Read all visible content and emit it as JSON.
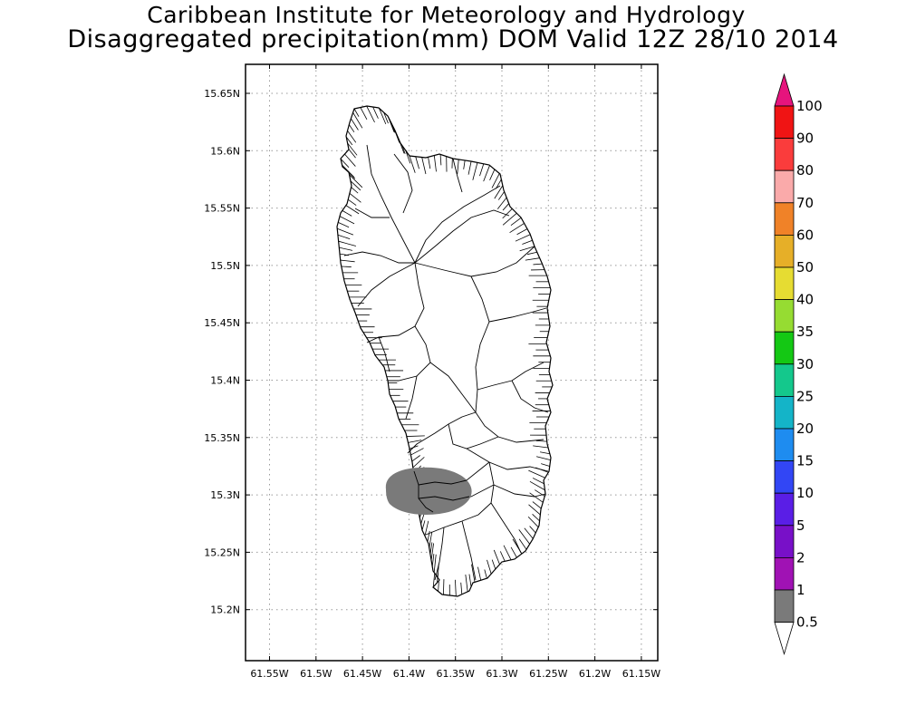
{
  "header": {
    "institution": "Caribbean Institute for Meteorology and Hydrology",
    "product": "Disaggregated precipitation(mm) DOM Valid 12Z 28/10 2014"
  },
  "axes": {
    "lat_ticks": [
      "15.65N",
      "15.6N",
      "15.55N",
      "15.5N",
      "15.45N",
      "15.4N",
      "15.35N",
      "15.3N",
      "15.25N",
      "15.2N"
    ],
    "lon_ticks": [
      "61.55W",
      "61.5W",
      "61.45W",
      "61.4W",
      "61.35W",
      "61.3W",
      "61.25W",
      "61.2W",
      "61.15W"
    ]
  },
  "precip_area": {
    "value_class": "0.5-1",
    "color": "#7a7a7a",
    "center_lat": 15.302,
    "center_lon": -61.368
  },
  "colorbar": {
    "labels": [
      "0.5",
      "1",
      "2",
      "5",
      "10",
      "15",
      "20",
      "25",
      "30",
      "35",
      "40",
      "50",
      "60",
      "70",
      "80",
      "90",
      "100"
    ],
    "colors": [
      "#7a7a7a",
      "#a012b4",
      "#7810c8",
      "#5a1ee6",
      "#3246f5",
      "#1e8cf0",
      "#14b4c8",
      "#14c88c",
      "#14c814",
      "#96dc32",
      "#e6dc32",
      "#e6af28",
      "#f08228",
      "#faaaaa",
      "#fa3c3c",
      "#f01414",
      "#e6147d"
    ],
    "under_color": "#ffffff"
  }
}
